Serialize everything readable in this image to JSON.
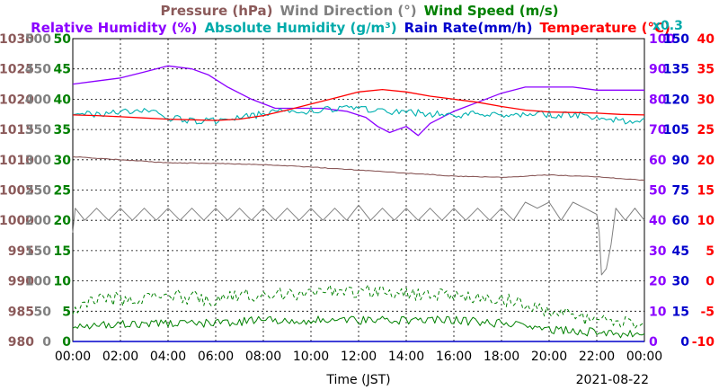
{
  "chart_data": {
    "type": "line",
    "title_parts": [
      {
        "text": "Pressure (hPa)",
        "color": "#8b5a5a"
      },
      {
        "text": "Wind Direction (°)",
        "color": "#808080"
      },
      {
        "text": "Wind Speed (m/s)",
        "color": "#008000"
      }
    ],
    "subtitle_parts": [
      {
        "text": "Relative Humidity (%)",
        "color": "#8b00ff"
      },
      {
        "text": "Absolute Humidity (g/m³)",
        "color": "#00aaaa"
      },
      {
        "text": "Rain Rate(mm/h)",
        "color": "#0000cc"
      },
      {
        "text": "Temperature (°C)",
        "color": "#ff0000"
      }
    ],
    "abs_humidity_scale_note": "x0.3",
    "xlabel": "Time (JST)",
    "date_label": "2021-08-22",
    "x_ticks": [
      "00:00",
      "02:00",
      "04:00",
      "06:00",
      "08:00",
      "10:00",
      "12:00",
      "14:00",
      "16:00",
      "18:00",
      "20:00",
      "22:00",
      "00:00"
    ],
    "x_range_hours": [
      0,
      24
    ],
    "grid": true,
    "axes": {
      "pressure": {
        "color": "#8b5a5a",
        "side": "left",
        "ticks": [
          "980",
          "985",
          "990",
          "995",
          "1000",
          "1005",
          "1010",
          "1015",
          "1020",
          "1025",
          "1030"
        ],
        "range": [
          980,
          1030
        ]
      },
      "wind_direction": {
        "color": "#808080",
        "side": "left",
        "ticks": [
          "0",
          "50",
          "100",
          "150",
          "200",
          "250",
          "300",
          "350",
          "400",
          "450",
          "500"
        ],
        "range": [
          0,
          500
        ]
      },
      "wind_speed": {
        "color": "#008000",
        "side": "left",
        "ticks": [
          "0",
          "5",
          "10",
          "15",
          "20",
          "25",
          "30",
          "35",
          "40",
          "45",
          "50"
        ],
        "range": [
          0,
          50
        ]
      },
      "relative_humidity": {
        "color": "#8b00ff",
        "side": "right",
        "ticks": [
          "0",
          "10",
          "20",
          "30",
          "40",
          "50",
          "60",
          "70",
          "80",
          "90",
          "100"
        ],
        "range": [
          0,
          100
        ]
      },
      "rain_rate": {
        "color": "#0000cc",
        "side": "right",
        "ticks": [
          "0",
          "15",
          "30",
          "45",
          "60",
          "75",
          "90",
          "105",
          "120",
          "135",
          "150"
        ],
        "range": [
          0,
          150
        ]
      },
      "temperature": {
        "color": "#ff0000",
        "side": "right",
        "ticks": [
          "-10",
          "-5",
          "0",
          "5",
          "10",
          "15",
          "20",
          "25",
          "30",
          "35",
          "40"
        ],
        "range": [
          -10,
          40
        ]
      }
    },
    "series": [
      {
        "name": "Relative Humidity (%)",
        "axis": "relative_humidity",
        "color": "#8b00ff",
        "width": 1.3,
        "noise": 0,
        "points": [
          [
            0,
            85
          ],
          [
            1,
            86
          ],
          [
            2,
            87
          ],
          [
            3,
            89
          ],
          [
            4,
            91
          ],
          [
            5,
            90
          ],
          [
            5.7,
            88
          ],
          [
            6.5,
            84
          ],
          [
            7.5,
            80
          ],
          [
            8.5,
            77
          ],
          [
            9.5,
            77
          ],
          [
            10.5,
            77
          ],
          [
            11.5,
            76
          ],
          [
            12.3,
            74
          ],
          [
            12.8,
            71
          ],
          [
            13.3,
            69
          ],
          [
            14,
            71
          ],
          [
            14.5,
            68
          ],
          [
            15,
            72
          ],
          [
            15.5,
            74
          ],
          [
            16,
            76
          ],
          [
            17,
            79
          ],
          [
            18,
            82
          ],
          [
            19,
            84
          ],
          [
            20,
            84
          ],
          [
            21,
            84
          ],
          [
            22,
            83
          ],
          [
            23,
            83
          ],
          [
            24,
            83
          ]
        ]
      },
      {
        "name": "Absolute Humidity (g/m³)",
        "axis": "relative_humidity",
        "color": "#00b0b0",
        "width": 1.1,
        "noise": 1.2,
        "points": [
          [
            0,
            75
          ],
          [
            1,
            75
          ],
          [
            2,
            76
          ],
          [
            3,
            76
          ],
          [
            4,
            74
          ],
          [
            5,
            73
          ],
          [
            6,
            73
          ],
          [
            7,
            74
          ],
          [
            8,
            75
          ],
          [
            9,
            76
          ],
          [
            10,
            76
          ],
          [
            11,
            77
          ],
          [
            12,
            77
          ],
          [
            13,
            76
          ],
          [
            14,
            76
          ],
          [
            15,
            75
          ],
          [
            16,
            75
          ],
          [
            17,
            75
          ],
          [
            18,
            75
          ],
          [
            19,
            75
          ],
          [
            20,
            75
          ],
          [
            21,
            75
          ],
          [
            22,
            74
          ],
          [
            23,
            73
          ],
          [
            24,
            73
          ]
        ]
      },
      {
        "name": "Temperature (°C)",
        "axis": "temperature",
        "color": "#ff0000",
        "width": 1.3,
        "noise": 0,
        "points": [
          [
            0,
            27.4
          ],
          [
            1,
            27.3
          ],
          [
            2,
            27.1
          ],
          [
            3,
            26.9
          ],
          [
            4,
            26.7
          ],
          [
            5,
            26.6
          ],
          [
            6,
            26.5
          ],
          [
            7,
            26.7
          ],
          [
            8,
            27.3
          ],
          [
            9,
            28.2
          ],
          [
            10,
            29.2
          ],
          [
            11,
            30.2
          ],
          [
            12,
            31.2
          ],
          [
            13,
            31.6
          ],
          [
            14,
            31.2
          ],
          [
            15,
            30.5
          ],
          [
            16,
            30
          ],
          [
            17,
            29.5
          ],
          [
            18,
            28.8
          ],
          [
            19,
            28.2
          ],
          [
            20,
            27.9
          ],
          [
            21,
            27.8
          ],
          [
            22,
            27.7
          ],
          [
            23,
            27.5
          ],
          [
            24,
            27.4
          ]
        ]
      },
      {
        "name": "Pressure (hPa)",
        "axis": "pressure",
        "color": "#8b5a5a",
        "width": 1.1,
        "noise": 0.05,
        "points": [
          [
            0,
            1010.5
          ],
          [
            2,
            1010
          ],
          [
            4,
            1009.5
          ],
          [
            6,
            1009.4
          ],
          [
            8,
            1009.2
          ],
          [
            10,
            1008.8
          ],
          [
            12,
            1008.3
          ],
          [
            14,
            1007.8
          ],
          [
            16,
            1007.3
          ],
          [
            18,
            1007.1
          ],
          [
            20,
            1007.5
          ],
          [
            22,
            1007.2
          ],
          [
            24,
            1006.6
          ]
        ]
      },
      {
        "name": "Wind Direction (°)",
        "axis": "wind_direction",
        "color": "#808080",
        "width": 1.0,
        "noise": 0,
        "points": [
          [
            0,
            180
          ],
          [
            0.1,
            220
          ],
          [
            0.5,
            200
          ],
          [
            1,
            220
          ],
          [
            1.5,
            200
          ],
          [
            2,
            220
          ],
          [
            2.5,
            200
          ],
          [
            3,
            220
          ],
          [
            3.5,
            200
          ],
          [
            4,
            220
          ],
          [
            4.5,
            200
          ],
          [
            5,
            220
          ],
          [
            5.5,
            200
          ],
          [
            6,
            220
          ],
          [
            6.5,
            200
          ],
          [
            7,
            220
          ],
          [
            7.5,
            200
          ],
          [
            8,
            220
          ],
          [
            8.5,
            200
          ],
          [
            9,
            220
          ],
          [
            9.5,
            200
          ],
          [
            10,
            220
          ],
          [
            10.5,
            200
          ],
          [
            11,
            220
          ],
          [
            11.5,
            200
          ],
          [
            12,
            225
          ],
          [
            12.5,
            200
          ],
          [
            13,
            220
          ],
          [
            13.5,
            200
          ],
          [
            14,
            220
          ],
          [
            14.5,
            200
          ],
          [
            15,
            220
          ],
          [
            15.5,
            200
          ],
          [
            16,
            220
          ],
          [
            16.5,
            200
          ],
          [
            17,
            220
          ],
          [
            17.5,
            200
          ],
          [
            18,
            220
          ],
          [
            18.5,
            200
          ],
          [
            19,
            230
          ],
          [
            19.5,
            220
          ],
          [
            20,
            230
          ],
          [
            20.5,
            200
          ],
          [
            21,
            230
          ],
          [
            21.5,
            220
          ],
          [
            22,
            210
          ],
          [
            22.1,
            180
          ],
          [
            22.2,
            110
          ],
          [
            22.4,
            120
          ],
          [
            22.6,
            160
          ],
          [
            22.8,
            220
          ],
          [
            23.2,
            200
          ],
          [
            23.6,
            220
          ],
          [
            24,
            200
          ]
        ]
      },
      {
        "name": "Wind Speed (m/s) gust",
        "axis": "wind_speed",
        "color": "#008000",
        "width": 1.0,
        "dash": "4,3",
        "noise": 1.2,
        "points": [
          [
            0,
            5
          ],
          [
            1,
            7
          ],
          [
            2,
            7
          ],
          [
            4,
            7.5
          ],
          [
            6,
            7
          ],
          [
            8,
            8
          ],
          [
            10,
            8
          ],
          [
            12,
            8.5
          ],
          [
            14,
            8
          ],
          [
            16,
            7.5
          ],
          [
            18,
            7
          ],
          [
            20,
            5
          ],
          [
            22,
            3.5
          ],
          [
            24,
            2.5
          ]
        ]
      },
      {
        "name": "Wind Speed (m/s) mean",
        "axis": "wind_speed",
        "color": "#008000",
        "width": 1.0,
        "noise": 0.7,
        "points": [
          [
            0,
            2.5
          ],
          [
            2,
            3
          ],
          [
            4,
            3
          ],
          [
            6,
            3
          ],
          [
            8,
            3.5
          ],
          [
            10,
            3.5
          ],
          [
            12,
            3.5
          ],
          [
            14,
            3.5
          ],
          [
            16,
            3.5
          ],
          [
            18,
            3
          ],
          [
            20,
            2
          ],
          [
            22,
            1.5
          ],
          [
            24,
            1
          ]
        ]
      },
      {
        "name": "Rain Rate(mm/h)",
        "axis": "rain_rate",
        "color": "#0000cc",
        "width": 1.5,
        "noise": 0,
        "points": [
          [
            0,
            0
          ],
          [
            24,
            0
          ]
        ]
      }
    ]
  }
}
